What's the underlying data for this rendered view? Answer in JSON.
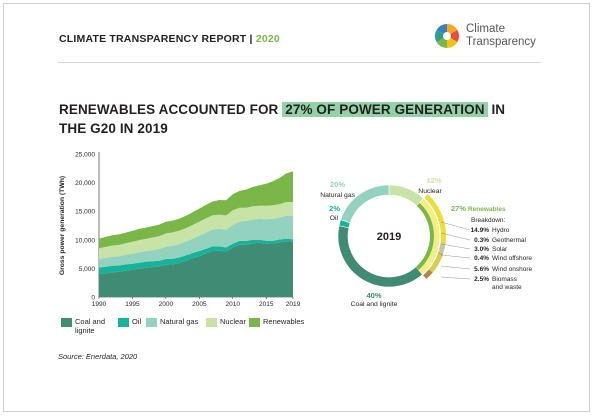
{
  "header": {
    "title": "CLIMATE TRANSPARENCY REPORT",
    "separator": "|",
    "year": "2020",
    "logo_line1": "Climate",
    "logo_line2": "Transparency"
  },
  "headline": {
    "before": "RENEWABLES ACCOUNTED FOR",
    "highlight": "27% OF POWER GENERATION",
    "after": "IN THE G20 IN 2019"
  },
  "source": "Source: Enerdata, 2020",
  "colors": {
    "coal": "#3f8b73",
    "oil": "#16b39a",
    "gas": "#93d2bf",
    "nuclear": "#c7e3a5",
    "renewables": "#7ab648",
    "donut_renewables_light": "#f3ee85",
    "text": "#231f20",
    "rule": "#d8d8d8"
  },
  "chart_data": [
    {
      "type": "area",
      "stacked": true,
      "ylabel": "Gross power generation (TWh)",
      "ylim": [
        0,
        25000
      ],
      "yticks": [
        "0",
        "5,000",
        "10,000",
        "15,000",
        "20,000",
        "25,000"
      ],
      "xlim": [
        1990,
        2019
      ],
      "xticks": [
        "1990",
        "1995",
        "2000",
        "2005",
        "2010",
        "2015",
        "2019"
      ],
      "x": [
        1990,
        1991,
        1992,
        1993,
        1994,
        1995,
        1996,
        1997,
        1998,
        1999,
        2000,
        2001,
        2002,
        2003,
        2004,
        2005,
        2006,
        2007,
        2008,
        2009,
        2010,
        2011,
        2012,
        2013,
        2014,
        2015,
        2016,
        2017,
        2018,
        2019
      ],
      "series": [
        {
          "name": "Coal and lignite",
          "color": "#3f8b73",
          "values": [
            4000,
            4150,
            4300,
            4400,
            4600,
            4750,
            4950,
            5100,
            5200,
            5350,
            5650,
            5700,
            5950,
            6350,
            6800,
            7150,
            7600,
            8050,
            8100,
            7950,
            8600,
            9150,
            9150,
            9400,
            9450,
            9300,
            9350,
            9550,
            9750,
            9650
          ]
        },
        {
          "name": "Oil",
          "color": "#16b39a",
          "values": [
            1150,
            1150,
            1150,
            1100,
            1100,
            1050,
            1050,
            1050,
            1050,
            1000,
            1000,
            1000,
            950,
            950,
            900,
            900,
            850,
            800,
            750,
            700,
            700,
            650,
            650,
            600,
            550,
            550,
            500,
            500,
            450,
            450
          ]
        },
        {
          "name": "Natural gas",
          "color": "#93d2bf",
          "values": [
            1500,
            1550,
            1600,
            1650,
            1700,
            1750,
            1800,
            1850,
            1950,
            2050,
            2150,
            2250,
            2350,
            2400,
            2500,
            2650,
            2800,
            2950,
            3050,
            3100,
            3300,
            3350,
            3500,
            3550,
            3650,
            3750,
            3850,
            3850,
            4000,
            4050
          ]
        },
        {
          "name": "Nuclear",
          "color": "#c7e3a5",
          "values": [
            1850,
            1900,
            1950,
            1950,
            2000,
            2100,
            2150,
            2150,
            2200,
            2250,
            2300,
            2350,
            2350,
            2350,
            2400,
            2450,
            2500,
            2500,
            2500,
            2500,
            2550,
            2450,
            2300,
            2300,
            2300,
            2350,
            2350,
            2350,
            2400,
            2450
          ]
        },
        {
          "name": "Renewables",
          "color": "#7ab648",
          "values": [
            1700,
            1750,
            1780,
            1850,
            1850,
            1900,
            1950,
            1980,
            2000,
            2000,
            2050,
            2050,
            2100,
            2150,
            2200,
            2300,
            2350,
            2400,
            2550,
            2650,
            2800,
            2950,
            3200,
            3400,
            3600,
            3850,
            4200,
            4550,
            5000,
            5400
          ]
        }
      ],
      "legend": [
        "Coal and lignite",
        "Oil",
        "Natural gas",
        "Nuclear",
        "Renewables"
      ],
      "legend_position": "bottom"
    },
    {
      "type": "pie",
      "variant": "donut",
      "center_label": "2019",
      "slices": [
        {
          "label": "Coal and lignite",
          "value": 40,
          "value_label": "40%"
        },
        {
          "label": "Oil",
          "value": 2,
          "value_label": "2%"
        },
        {
          "label": "Natural gas",
          "value": 20,
          "value_label": "20%"
        },
        {
          "label": "Nuclear",
          "value": 12,
          "value_label": "12%"
        },
        {
          "label": "Renewables",
          "value": 27,
          "value_label": "27%"
        }
      ],
      "renewables_breakdown_title": "Breakdown:",
      "renewables_breakdown": [
        {
          "value_label": "14.9%",
          "label": "Hydro",
          "value": 14.9
        },
        {
          "value_label": "0.3%",
          "label": "Geothermal",
          "value": 0.3
        },
        {
          "value_label": "3.0%",
          "label": "Solar",
          "value": 3.0
        },
        {
          "value_label": "0.4%",
          "label": "Wind offshore",
          "value": 0.4
        },
        {
          "value_label": "5.6%",
          "label": "Wind onshore",
          "value": 5.6
        },
        {
          "value_label": "2.5%",
          "label": "Biomass\nand waste",
          "value": 2.5
        }
      ]
    }
  ]
}
